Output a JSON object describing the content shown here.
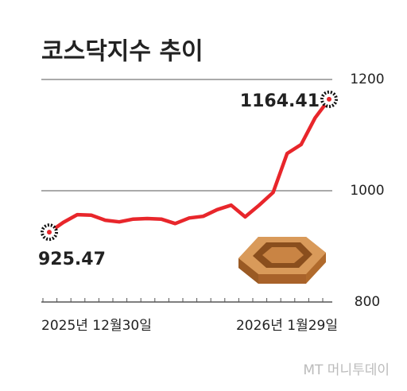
{
  "chart_data": {
    "type": "line",
    "title": "코스닥지수 추이",
    "categories": [
      "2025년 12월30일",
      null,
      null,
      null,
      null,
      null,
      null,
      null,
      null,
      null,
      null,
      null,
      null,
      null,
      null,
      null,
      null,
      null,
      null,
      null,
      "2026년 1월29일"
    ],
    "series": [
      {
        "name": "코스닥지수",
        "color": "#e8262b",
        "values": [
          925.47,
          943,
          957,
          956,
          947,
          944,
          949,
          950,
          949,
          941,
          951,
          954,
          966,
          974,
          953,
          974,
          997,
          1067,
          1083,
          1131,
          1164.41
        ]
      }
    ],
    "ylim": [
      800,
      1200
    ],
    "yticks": [
      800,
      1000,
      1200
    ],
    "grid": true,
    "source": "MT 머니투데이"
  }
}
